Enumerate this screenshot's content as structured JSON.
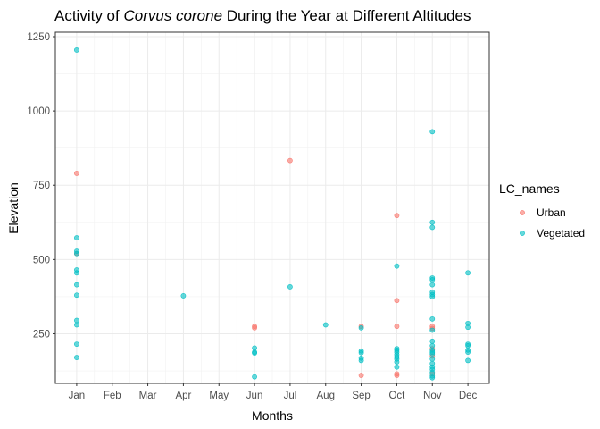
{
  "chart_data": {
    "type": "scatter",
    "title": {
      "prefix": "Activity of ",
      "species": "Corvus corone",
      "suffix": " During the Year at Different Altitudes"
    },
    "xlabel": "Months",
    "ylabel": "Elevation",
    "x_categories": [
      "Jan",
      "Feb",
      "Mar",
      "Apr",
      "May",
      "Jun",
      "Jul",
      "Aug",
      "Sep",
      "Oct",
      "Nov",
      "Dec"
    ],
    "ylim": [
      83,
      1265
    ],
    "y_ticks": [
      250,
      500,
      750,
      1000,
      1250
    ],
    "grid": true,
    "legend": {
      "title": "LC_names",
      "position": "right",
      "entries": [
        "Urban",
        "Vegetated"
      ]
    },
    "series": [
      {
        "name": "Urban",
        "color": "#F8766D",
        "points": [
          {
            "x": "Jan",
            "y": 790
          },
          {
            "x": "Jan",
            "y": 520
          },
          {
            "x": "Jun",
            "y": 275
          },
          {
            "x": "Jun",
            "y": 270
          },
          {
            "x": "Jul",
            "y": 833
          },
          {
            "x": "Sep",
            "y": 275
          },
          {
            "x": "Sep",
            "y": 110
          },
          {
            "x": "Oct",
            "y": 648
          },
          {
            "x": "Oct",
            "y": 362
          },
          {
            "x": "Oct",
            "y": 275
          },
          {
            "x": "Oct",
            "y": 115
          },
          {
            "x": "Oct",
            "y": 110
          },
          {
            "x": "Nov",
            "y": 275
          },
          {
            "x": "Nov",
            "y": 268
          },
          {
            "x": "Nov",
            "y": 200
          },
          {
            "x": "Nov",
            "y": 175
          },
          {
            "x": "Nov",
            "y": 115
          }
        ]
      },
      {
        "name": "Vegetated",
        "color": "#00BFC4",
        "points": [
          {
            "x": "Jan",
            "y": 1205
          },
          {
            "x": "Jan",
            "y": 573
          },
          {
            "x": "Jan",
            "y": 528
          },
          {
            "x": "Jan",
            "y": 520
          },
          {
            "x": "Jan",
            "y": 465
          },
          {
            "x": "Jan",
            "y": 455
          },
          {
            "x": "Jan",
            "y": 415
          },
          {
            "x": "Jan",
            "y": 380
          },
          {
            "x": "Jan",
            "y": 295
          },
          {
            "x": "Jan",
            "y": 280
          },
          {
            "x": "Jan",
            "y": 215
          },
          {
            "x": "Jan",
            "y": 170
          },
          {
            "x": "Apr",
            "y": 378
          },
          {
            "x": "Jun",
            "y": 202
          },
          {
            "x": "Jun",
            "y": 188
          },
          {
            "x": "Jun",
            "y": 185
          },
          {
            "x": "Jun",
            "y": 105
          },
          {
            "x": "Jul",
            "y": 408
          },
          {
            "x": "Aug",
            "y": 280
          },
          {
            "x": "Sep",
            "y": 270
          },
          {
            "x": "Sep",
            "y": 192
          },
          {
            "x": "Sep",
            "y": 186
          },
          {
            "x": "Sep",
            "y": 168
          },
          {
            "x": "Sep",
            "y": 160
          },
          {
            "x": "Oct",
            "y": 478
          },
          {
            "x": "Oct",
            "y": 200
          },
          {
            "x": "Oct",
            "y": 195
          },
          {
            "x": "Oct",
            "y": 188
          },
          {
            "x": "Oct",
            "y": 180
          },
          {
            "x": "Oct",
            "y": 172
          },
          {
            "x": "Oct",
            "y": 165
          },
          {
            "x": "Oct",
            "y": 155
          },
          {
            "x": "Oct",
            "y": 138
          },
          {
            "x": "Nov",
            "y": 930
          },
          {
            "x": "Nov",
            "y": 625
          },
          {
            "x": "Nov",
            "y": 608
          },
          {
            "x": "Nov",
            "y": 438
          },
          {
            "x": "Nov",
            "y": 432
          },
          {
            "x": "Nov",
            "y": 415
          },
          {
            "x": "Nov",
            "y": 390
          },
          {
            "x": "Nov",
            "y": 382
          },
          {
            "x": "Nov",
            "y": 375
          },
          {
            "x": "Nov",
            "y": 300
          },
          {
            "x": "Nov",
            "y": 262
          },
          {
            "x": "Nov",
            "y": 225
          },
          {
            "x": "Nov",
            "y": 210
          },
          {
            "x": "Nov",
            "y": 195
          },
          {
            "x": "Nov",
            "y": 188
          },
          {
            "x": "Nov",
            "y": 182
          },
          {
            "x": "Nov",
            "y": 165
          },
          {
            "x": "Nov",
            "y": 150
          },
          {
            "x": "Nov",
            "y": 138
          },
          {
            "x": "Nov",
            "y": 130
          },
          {
            "x": "Nov",
            "y": 120
          },
          {
            "x": "Nov",
            "y": 108
          },
          {
            "x": "Nov",
            "y": 102
          },
          {
            "x": "Dec",
            "y": 455
          },
          {
            "x": "Dec",
            "y": 285
          },
          {
            "x": "Dec",
            "y": 272
          },
          {
            "x": "Dec",
            "y": 215
          },
          {
            "x": "Dec",
            "y": 210
          },
          {
            "x": "Dec",
            "y": 195
          },
          {
            "x": "Dec",
            "y": 188
          },
          {
            "x": "Dec",
            "y": 160
          }
        ]
      }
    ]
  }
}
